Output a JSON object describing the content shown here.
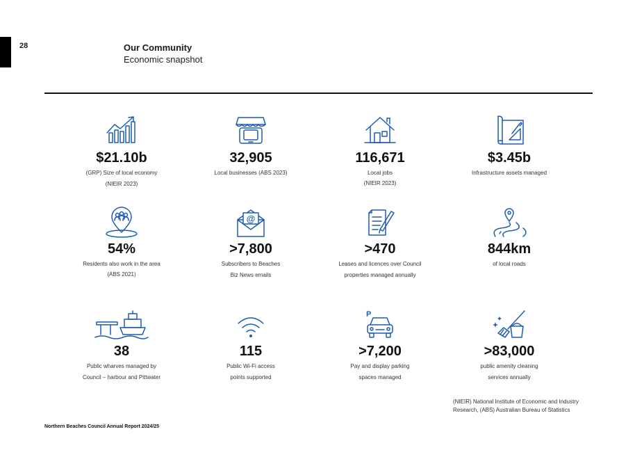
{
  "page": {
    "number": "28",
    "title": "Our Community",
    "subtitle": "Economic snapshot"
  },
  "stats": [
    {
      "value": "$21.10b",
      "line1": "(GRP) Size of local economy",
      "line2": "(NIEIR 2023)",
      "icon": "growth-chart-icon"
    },
    {
      "value": "32,905",
      "line1": "Local businesses (ABS 2023)",
      "line2": "",
      "icon": "shopfront-icon"
    },
    {
      "value": "116,671",
      "line1": "Local jobs",
      "line2": "(NIEIR 2023)",
      "icon": "house-icon"
    },
    {
      "value": "$3.45b",
      "line1": "Infrastructure assets managed",
      "line2": "",
      "icon": "blueprint-icon"
    },
    {
      "value": "54%",
      "line1": "Residents also work in the area",
      "line2": "(ABS 2021)",
      "icon": "community-pin-icon"
    },
    {
      "value": ">7,800",
      "line1": "Subscribers to Beaches",
      "line2": "Biz News emails",
      "icon": "email-envelope-icon"
    },
    {
      "value": ">470",
      "line1": "Leases and licences over Council",
      "line2": "properties managed annually",
      "icon": "document-pen-icon"
    },
    {
      "value": "844km",
      "line1": "of local roads",
      "line2": "",
      "icon": "winding-road-icon"
    },
    {
      "value": "38",
      "line1": "Public wharves managed by",
      "line2": "Council – harbour and Pittwater",
      "icon": "wharf-ferry-icon"
    },
    {
      "value": "115",
      "line1": "Public Wi-Fi access",
      "line2": "points supported",
      "icon": "wifi-icon"
    },
    {
      "value": ">7,200",
      "line1": "Pay and display parking",
      "line2": "spaces managed",
      "icon": "parking-car-icon"
    },
    {
      "value": ">83,000",
      "line1": "public amenity cleaning",
      "line2": "services annually",
      "icon": "broom-bucket-icon"
    }
  ],
  "footnote": {
    "line1": "(NIEIR) National Institute of Economic and Industry",
    "line2": "Research, (ABS) Australian Bureau of Statistics"
  },
  "footer": "Northern Beaches Council Annual Report 2024/25",
  "colors": {
    "accent": "#1e5bb0",
    "text": "#111111"
  }
}
